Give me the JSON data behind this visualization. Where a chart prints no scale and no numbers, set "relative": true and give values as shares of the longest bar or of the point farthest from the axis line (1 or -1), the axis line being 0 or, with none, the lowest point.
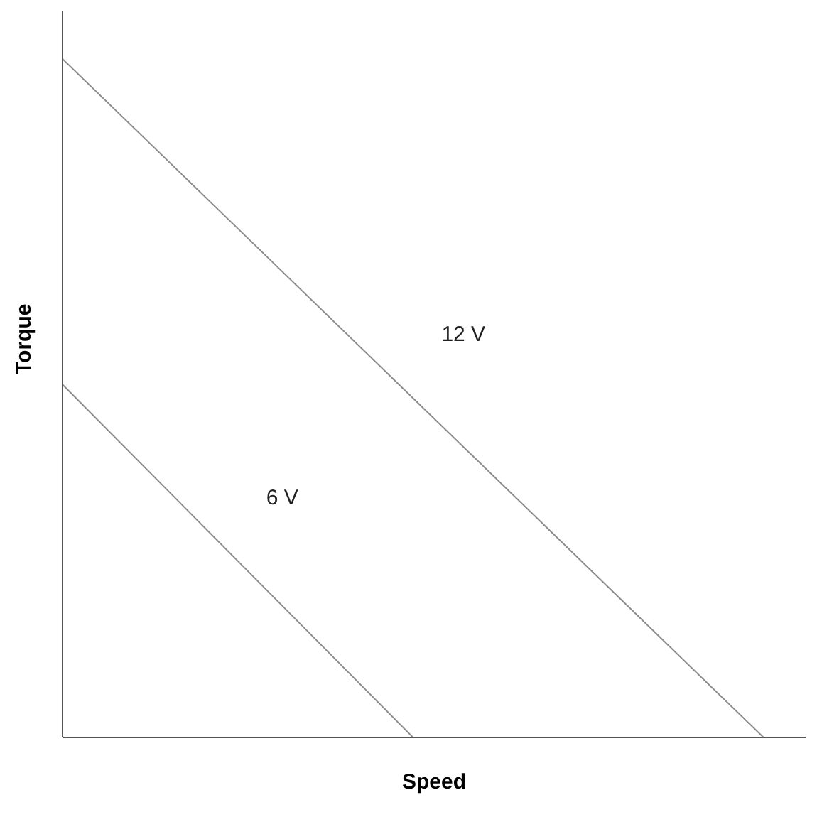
{
  "chart_data": {
    "type": "line",
    "relative": true,
    "xlabel": "Speed",
    "ylabel": "Torque",
    "categories": [
      null,
      null,
      null,
      null,
      null
    ],
    "series": [
      {
        "name": "12 V",
        "color": "#8c8c8c",
        "values": [
          1,
          0.75,
          0.5,
          0.25,
          0
        ]
      },
      {
        "name": "6 V",
        "color": "#8c8c8c",
        "values": [
          0.52,
          0.26,
          0,
          null,
          null
        ]
      }
    ],
    "marker": "none",
    "line_style": "solid",
    "grid": false,
    "legend": false
  }
}
